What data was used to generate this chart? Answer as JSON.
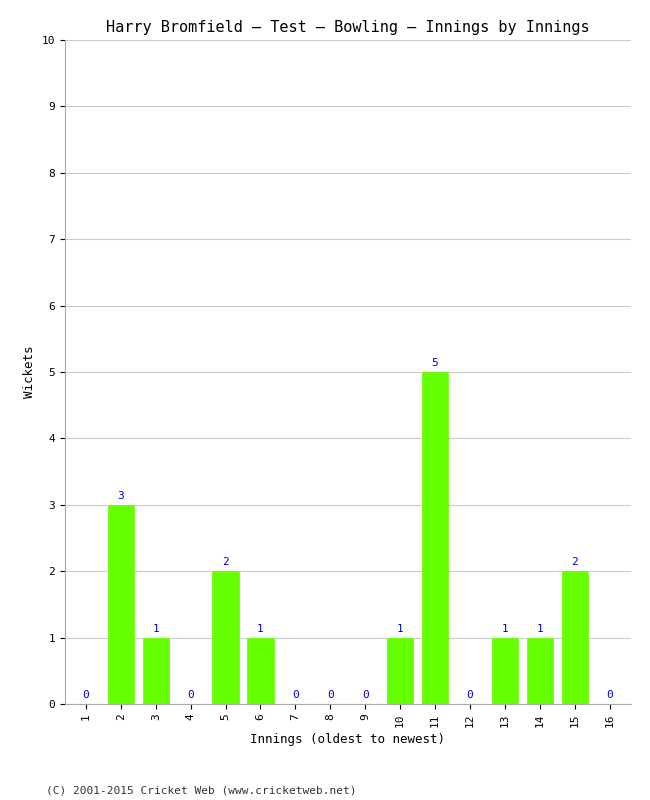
{
  "title": "Harry Bromfield – Test – Bowling – Innings by Innings",
  "xlabel": "Innings (oldest to newest)",
  "ylabel": "Wickets",
  "categories": [
    1,
    2,
    3,
    4,
    5,
    6,
    7,
    8,
    9,
    10,
    11,
    12,
    13,
    14,
    15,
    16
  ],
  "values": [
    0,
    3,
    1,
    0,
    2,
    1,
    0,
    0,
    0,
    1,
    5,
    0,
    1,
    1,
    2,
    0
  ],
  "bar_color": "#66ff00",
  "bar_edge_color": "#66ff00",
  "label_color": "#0000cc",
  "ylim": [
    0,
    10
  ],
  "yticks": [
    0,
    1,
    2,
    3,
    4,
    5,
    6,
    7,
    8,
    9,
    10
  ],
  "grid_color": "#cccccc",
  "background_color": "#ffffff",
  "title_fontsize": 11,
  "axis_label_fontsize": 9,
  "tick_fontsize": 8,
  "bar_label_fontsize": 8,
  "footer_text": "(C) 2001-2015 Cricket Web (www.cricketweb.net)",
  "footer_fontsize": 8
}
